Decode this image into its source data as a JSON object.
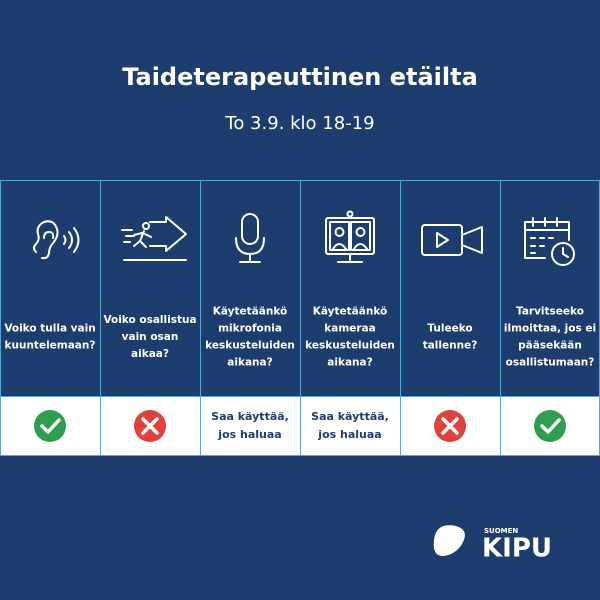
{
  "header": {
    "title": "Taideterapeuttinen etäilta",
    "subtitle": "To 3.9. klo 18-19"
  },
  "columns": [
    {
      "question": [
        "Voiko tulla vain",
        "kuuntelemaan?"
      ]
    },
    {
      "question": [
        "Voiko osallistua",
        "vain osan",
        "aikaa?"
      ]
    },
    {
      "question": [
        "Käytetäänkö",
        "mikrofonia",
        "keskusteluiden",
        "aikana?"
      ],
      "answer": [
        "Saa käyttää,",
        "jos haluaa"
      ]
    },
    {
      "question": [
        "Käytetäänkö",
        "kameraa",
        "keskusteluiden",
        "aikana?"
      ],
      "answer": [
        "Saa käyttää,",
        "jos haluaa"
      ]
    },
    {
      "question": [
        "Tuleeko",
        "tallenne?"
      ]
    },
    {
      "question": [
        "Tarvitseeko",
        "ilmoittaa, jos ei",
        "pääsekään",
        "osallistumaan?"
      ]
    }
  ],
  "logo": {
    "small": "SUOMEN",
    "large": "KIPU"
  }
}
